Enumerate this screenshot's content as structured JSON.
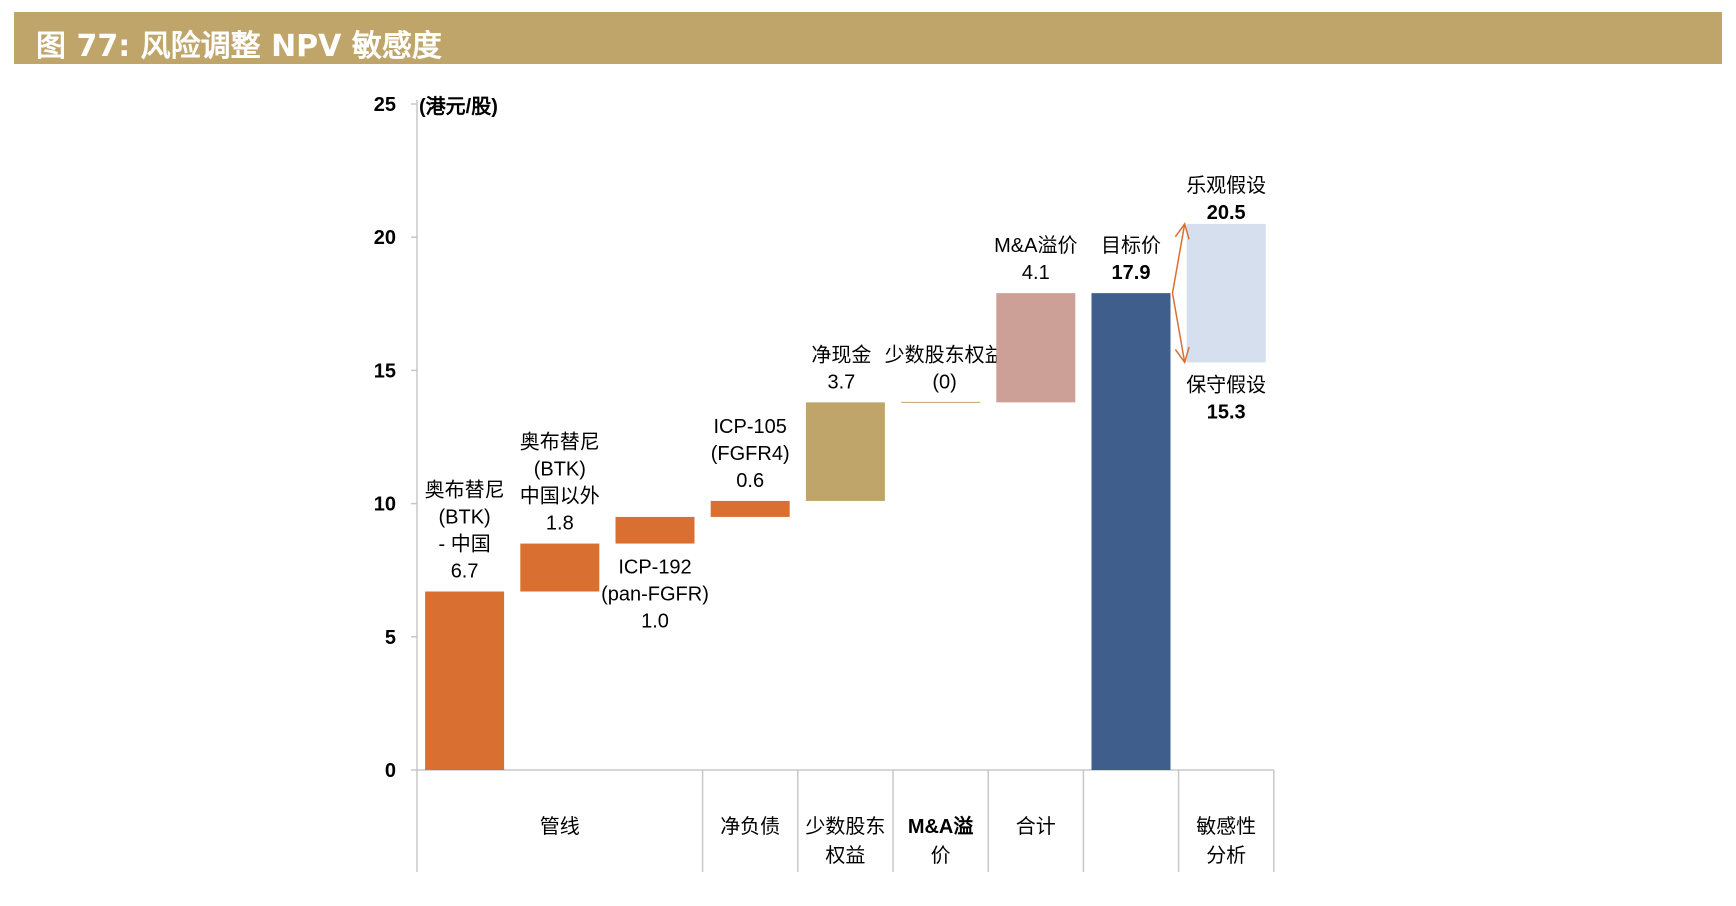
{
  "title": "图 77: 风险调整 NPV 敏感度",
  "chart_data": {
    "type": "waterfall",
    "ylim": [
      0,
      25
    ],
    "yticks": [
      0,
      5,
      10,
      15,
      20,
      25
    ],
    "unit_label": "(港元/股)",
    "colors": {
      "pipeline": "#d97031",
      "cash": "#bfa56a",
      "minority": "#bfa56a",
      "ma": "#cda097",
      "total": "#3f5e8c",
      "sensitivity": "#d5dfed",
      "arrow": "#d97031",
      "axis": "#c8c8c8"
    },
    "bars": [
      {
        "id": "orelabrutinib-china",
        "lines": [
          "奥布替尼",
          "(BTK)",
          "- 中国",
          "6.7"
        ],
        "base": 0,
        "top": 6.7,
        "color_key": "pipeline"
      },
      {
        "id": "orelabrutinib-ex-china",
        "lines": [
          "奥布替尼",
          "(BTK)",
          "中国以外",
          "1.8"
        ],
        "base": 6.7,
        "top": 8.5,
        "color_key": "pipeline"
      },
      {
        "id": "icp-192",
        "lines": [
          "ICP-192",
          "(pan-FGFR)",
          "1.0"
        ],
        "base": 8.5,
        "top": 9.5,
        "color_key": "pipeline"
      },
      {
        "id": "icp-105",
        "lines": [
          "ICP-105",
          "(FGFR4)",
          "0.6"
        ],
        "base": 9.5,
        "top": 10.1,
        "color_key": "pipeline"
      },
      {
        "id": "net-cash",
        "lines": [
          "净现金",
          "3.7"
        ],
        "base": 10.1,
        "top": 13.8,
        "color_key": "cash"
      },
      {
        "id": "minority",
        "lines": [
          "少数股东权益",
          "(0)"
        ],
        "base": 13.8,
        "top": 13.8,
        "color_key": "minority"
      },
      {
        "id": "ma-premium",
        "lines": [
          "M&A溢价",
          "4.1"
        ],
        "base": 13.8,
        "top": 17.9,
        "color_key": "ma"
      },
      {
        "id": "target-price",
        "lines": [
          "目标价",
          "17.9"
        ],
        "base": 0,
        "top": 17.9,
        "color_key": "total"
      },
      {
        "id": "sensitivity",
        "lines_top": [
          "乐观假设",
          "20.5"
        ],
        "lines_bottom": [
          "保守假设",
          "15.3"
        ],
        "base": 15.3,
        "top": 20.5,
        "color_key": "sensitivity"
      }
    ],
    "categories": [
      {
        "id": "pipeline",
        "lines": [
          "管线"
        ]
      },
      {
        "id": "net-debt",
        "lines": [
          "净负债"
        ]
      },
      {
        "id": "minority",
        "lines": [
          "少数股东",
          "权益"
        ]
      },
      {
        "id": "ma",
        "lines": [
          "M&A溢",
          "价"
        ]
      },
      {
        "id": "total",
        "lines": [
          "合计"
        ]
      },
      {
        "id": "blank",
        "lines": []
      },
      {
        "id": "sensitivity",
        "lines": [
          "敏感性",
          "分析"
        ]
      }
    ]
  }
}
